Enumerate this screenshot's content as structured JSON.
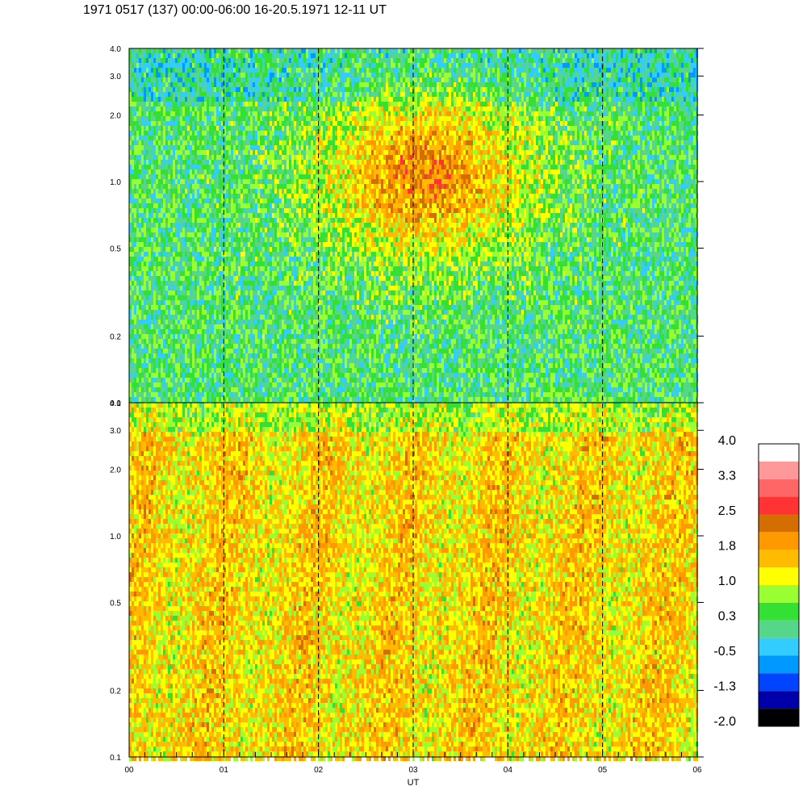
{
  "chart_data": {
    "type": "heatmap",
    "title": "1971 0517 (137) 00:00-06:00 16-20.5.1971 12-11 UT",
    "xlabel": "UT",
    "x_tick_labels": [
      "00",
      "01",
      "02",
      "03",
      "04",
      "05",
      "06"
    ],
    "xlim": [
      0,
      6
    ],
    "panels": [
      {
        "name": "upper",
        "y_scale": "log",
        "ylim": [
          0.1,
          4.0
        ],
        "y_ticks": [
          0.1,
          0.2,
          0.5,
          1.0,
          2.0,
          3.0,
          4.0
        ],
        "y_tick_labels": [
          "0.1",
          "0.2",
          "0.5",
          "1.0",
          "2.0",
          "3.0",
          "4.0"
        ],
        "dominant_colors": [
          "#33e033",
          "#55d68a",
          "#33ccff",
          "#ffff00",
          "#ff9900"
        ]
      },
      {
        "name": "lower",
        "y_scale": "log",
        "ylim": [
          0.1,
          4.0
        ],
        "y_ticks": [
          0.1,
          0.2,
          0.5,
          1.0,
          2.0,
          3.0,
          4.0
        ],
        "y_tick_labels": [
          "0.1",
          "0.2",
          "0.5",
          "1.0",
          "2.0",
          "3.0",
          "4.0"
        ],
        "dominant_colors": [
          "#ffff00",
          "#ffbb00",
          "#ff9900",
          "#99ff33",
          "#d46e00"
        ]
      }
    ],
    "dashed_hour_lines": [
      1,
      2,
      3,
      4,
      5
    ],
    "colorbar": {
      "min": -2.0,
      "max": 4.0,
      "labels": [
        "4.0",
        "3.3",
        "2.5",
        "1.8",
        "1.0",
        "0.3",
        "-0.5",
        "-1.3",
        "-2.0"
      ],
      "colors_top_to_bottom": [
        "#ffffff",
        "#ff9999",
        "#ff6666",
        "#ff3333",
        "#d46e00",
        "#ff9900",
        "#ffbb00",
        "#ffff00",
        "#99ff33",
        "#33e033",
        "#55d68a",
        "#33ccff",
        "#0099ff",
        "#0044ff",
        "#0000aa",
        "#000000"
      ]
    }
  }
}
